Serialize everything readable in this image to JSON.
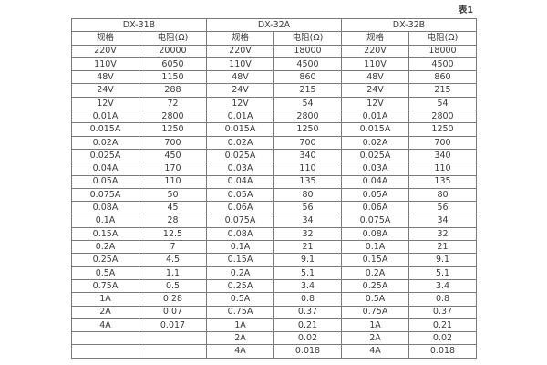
{
  "page": {
    "caption": "表1"
  },
  "table": {
    "groups": [
      {
        "name": "DX-31B"
      },
      {
        "name": "DX-32A"
      },
      {
        "name": "DX-32B"
      }
    ],
    "column_headers": [
      "规格",
      "电阻(Ω)",
      "规格",
      "电阻(Ω)",
      "规格",
      "电阻(Ω)"
    ],
    "rows": [
      [
        "220V",
        "20000",
        "220V",
        "18000",
        "220V",
        "18000"
      ],
      [
        "110V",
        "6050",
        "110V",
        "4500",
        "110V",
        "4500"
      ],
      [
        "48V",
        "1150",
        "48V",
        "860",
        "48V",
        "860"
      ],
      [
        "24V",
        "288",
        "24V",
        "215",
        "24V",
        "215"
      ],
      [
        "12V",
        "72",
        "12V",
        "54",
        "12V",
        "54"
      ],
      [
        "0.01A",
        "2800",
        "0.01A",
        "2800",
        "0.01A",
        "2800"
      ],
      [
        "0.015A",
        "1250",
        "0.015A",
        "1250",
        "0.015A",
        "1250"
      ],
      [
        "0.02A",
        "700",
        "0.02A",
        "700",
        "0.02A",
        "700"
      ],
      [
        "0.025A",
        "450",
        "0.025A",
        "340",
        "0.025A",
        "340"
      ],
      [
        "0.04A",
        "170",
        "0.03A",
        "110",
        "0.03A",
        "110"
      ],
      [
        "0.05A",
        "110",
        "0.04A",
        "135",
        "0.04A",
        "135"
      ],
      [
        "0.075A",
        "50",
        "0.05A",
        "80",
        "0.05A",
        "80"
      ],
      [
        "0.08A",
        "45",
        "0.06A",
        "56",
        "0.06A",
        "56"
      ],
      [
        "0.1A",
        "28",
        "0.075A",
        "34",
        "0.075A",
        "34"
      ],
      [
        "0.15A",
        "12.5",
        "0.08A",
        "32",
        "0.08A",
        "32"
      ],
      [
        "0.2A",
        "7",
        "0.1A",
        "21",
        "0.1A",
        "21"
      ],
      [
        "0.25A",
        "4.5",
        "0.15A",
        "9.1",
        "0.15A",
        "9.1"
      ],
      [
        "0.5A",
        "1.1",
        "0.2A",
        "5.1",
        "0.2A",
        "5.1"
      ],
      [
        "0.75A",
        "0.5",
        "0.25A",
        "3.4",
        "0.25A",
        "3.4"
      ],
      [
        "1A",
        "0.28",
        "0.5A",
        "0.8",
        "0.5A",
        "0.8"
      ],
      [
        "2A",
        "0.07",
        "0.75A",
        "0.37",
        "0.75A",
        "0.37"
      ],
      [
        "4A",
        "0.017",
        "1A",
        "0.21",
        "1A",
        "0.21"
      ],
      [
        "",
        "",
        "2A",
        "0.02",
        "2A",
        "0.02"
      ],
      [
        "",
        "",
        "4A",
        "0.018",
        "4A",
        "0.018"
      ]
    ],
    "colors": {
      "border": "#7a7a7a",
      "text": "#3a3a3a",
      "background": "#ffffff"
    }
  }
}
